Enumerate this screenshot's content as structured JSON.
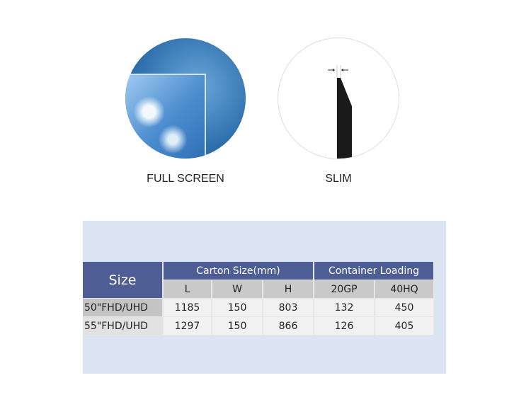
{
  "features": [
    {
      "label": "FULL SCREEN",
      "icon": "full-screen-image"
    },
    {
      "label": "SLIM",
      "icon": "slim-profile-image"
    }
  ],
  "table": {
    "size_header": "Size",
    "group_headers": [
      "Carton Size(mm)",
      "Container Loading"
    ],
    "sub_headers": [
      "L",
      "W",
      "H",
      "20GP",
      "40HQ"
    ],
    "rows": [
      {
        "model": "50\"FHD/UHD",
        "values": [
          "1185",
          "150",
          "803",
          "132",
          "450"
        ]
      },
      {
        "model": "55\"FHD/UHD",
        "values": [
          "1297",
          "150",
          "866",
          "126",
          "405"
        ]
      }
    ]
  },
  "colors": {
    "header": "#4f5d95",
    "panel": "#dbe5f1",
    "subheader": "#c9c9c9"
  }
}
